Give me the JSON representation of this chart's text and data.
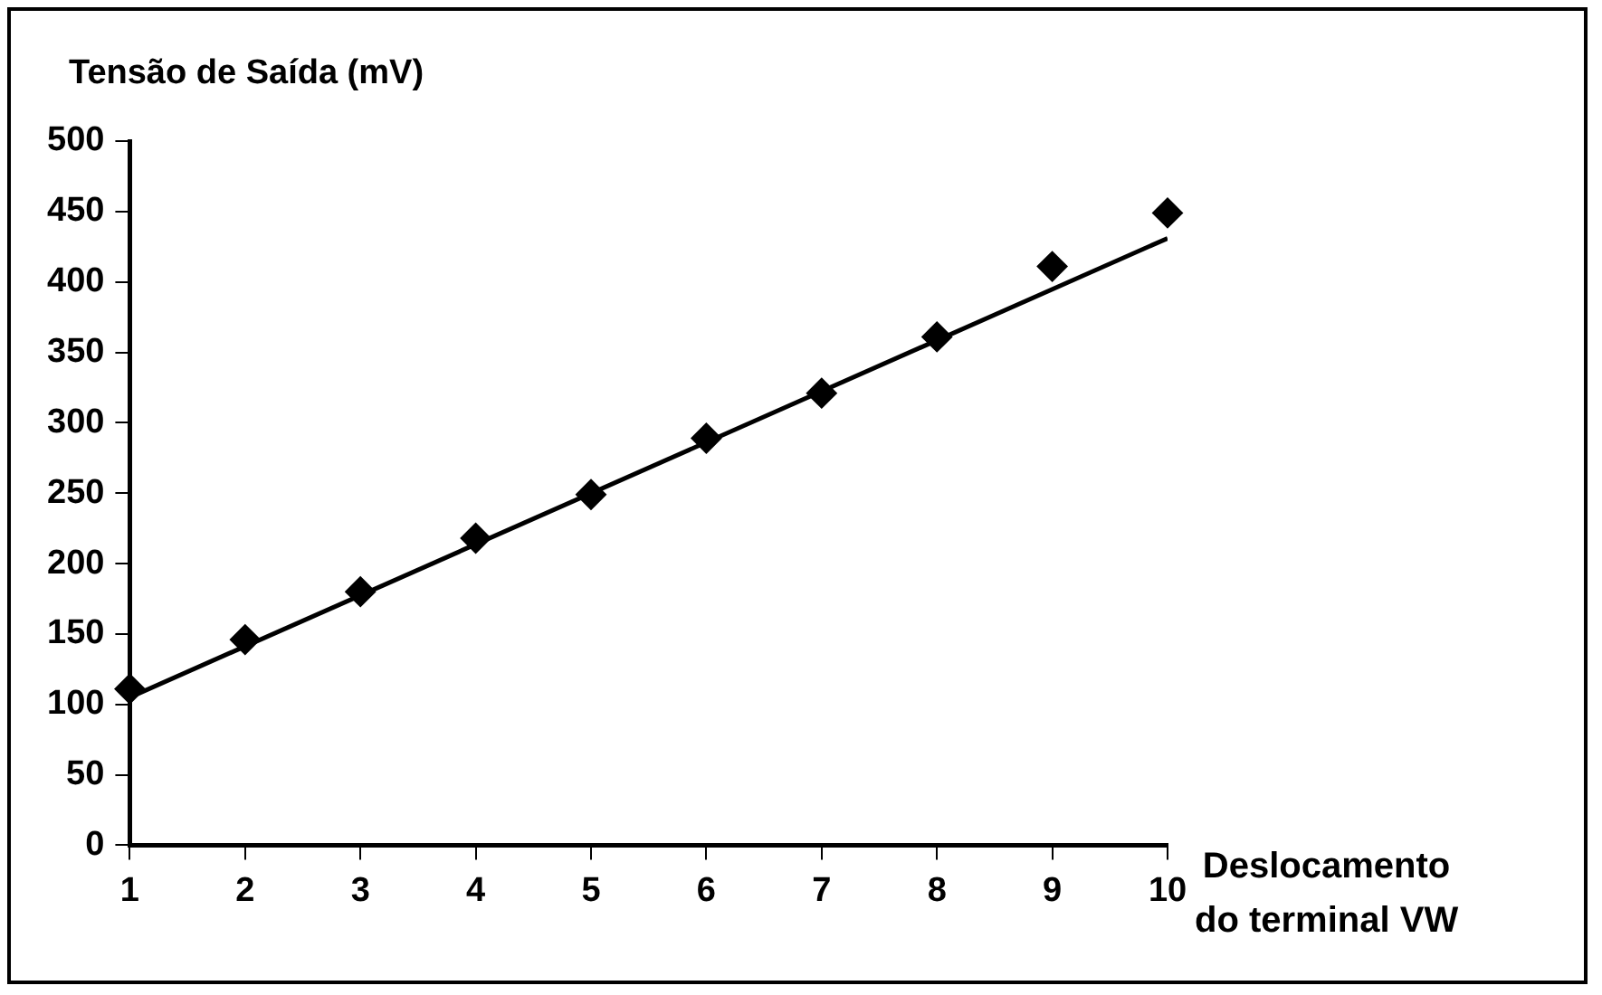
{
  "chart_data": {
    "type": "scatter",
    "ylabel": "Tensão de Saída (mV)",
    "xlabel": "Deslocamento\ndo terminal VW",
    "xlim": [
      1,
      10
    ],
    "xticks": [
      1,
      2,
      3,
      4,
      5,
      6,
      7,
      8,
      9,
      10
    ],
    "ylim": [
      0,
      500
    ],
    "yticks": [
      0,
      50,
      100,
      150,
      200,
      250,
      300,
      350,
      400,
      450,
      500
    ],
    "grid": false,
    "legend": false,
    "marker": "diamond",
    "series": [
      {
        "color": "#000000",
        "x": [
          1,
          2,
          3,
          4,
          5,
          6,
          7,
          8,
          9,
          10
        ],
        "values": [
          111,
          146,
          180,
          218,
          249,
          289,
          321,
          361,
          411,
          449
        ]
      },
      {
        "type": "line",
        "color": "#000000",
        "marker": "none",
        "line_style": "solid",
        "x": [
          1,
          10
        ],
        "values": [
          105,
          431
        ]
      }
    ]
  }
}
